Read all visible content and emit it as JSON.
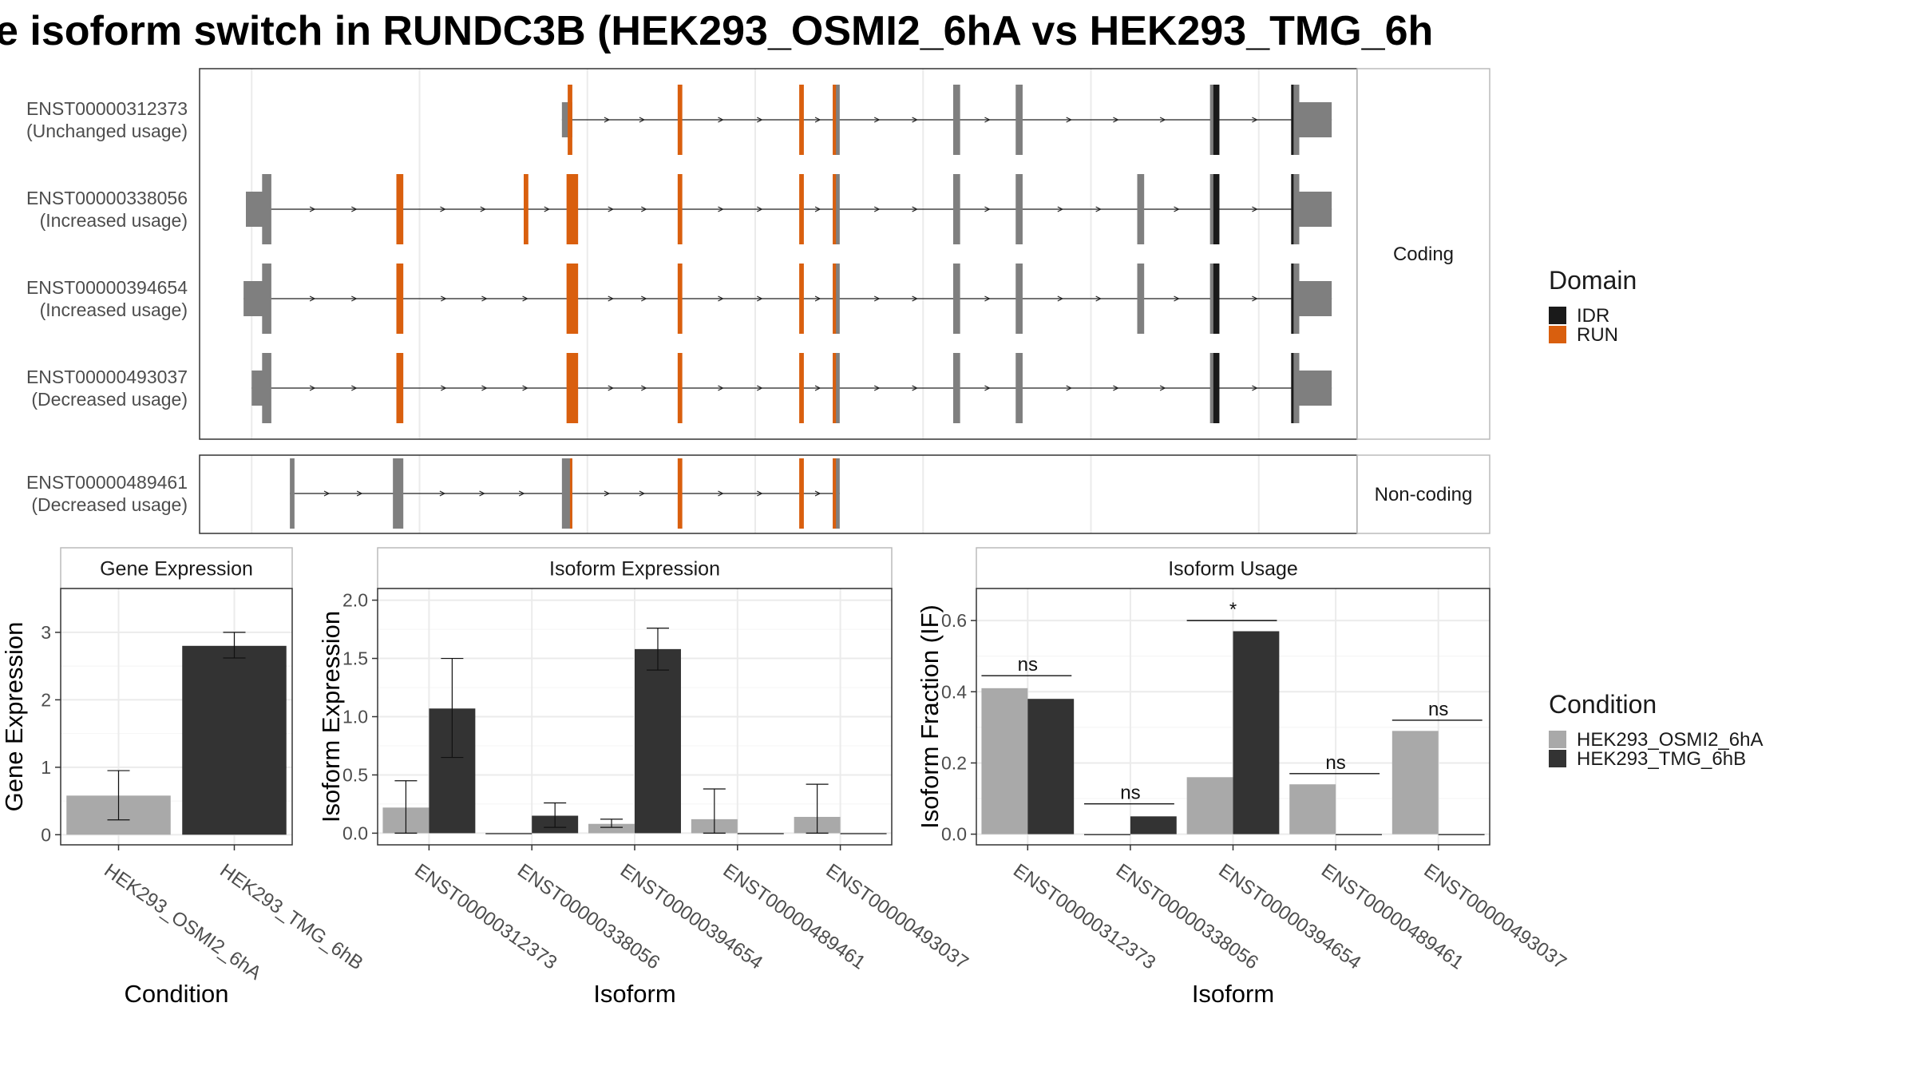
{
  "title": "e isoform switch in RUNDC3B (HEK293_OSMI2_6hA vs HEK293_TMG_6h",
  "colors": {
    "exon": "#7f7f7f",
    "IDR": "#1a1a1a",
    "RUN": "#d95f0e",
    "condA": "#a9a9a9",
    "condB": "#333333",
    "grid": "#ebebeb",
    "strip_bg": "#ffffff"
  },
  "transcripts": {
    "coding_label": "Coding",
    "noncoding_label": "Non-coding",
    "rows": [
      {
        "id": "ENST00000312373",
        "usage": "(Unchanged usage)",
        "group": "Coding",
        "utr_start": [
          0.313,
          0.322
        ],
        "exons": [
          {
            "s": 0.318,
            "e": 0.322,
            "d": "RUN"
          },
          {
            "s": 0.413,
            "e": 0.417,
            "d": "RUN"
          },
          {
            "s": 0.518,
            "e": 0.522,
            "d": "RUN"
          },
          {
            "s": 0.547,
            "e": 0.553,
            "d": "mix"
          },
          {
            "s": 0.651,
            "e": 0.657,
            "d": null
          },
          {
            "s": 0.705,
            "e": 0.711,
            "d": null
          },
          {
            "s": 0.873,
            "e": 0.881,
            "d": "IDR"
          },
          {
            "s": 0.943,
            "e": 0.95,
            "d": "edge"
          }
        ],
        "utr_end": [
          0.95,
          0.978
        ]
      },
      {
        "id": "ENST00000338056",
        "usage": "(Increased usage)",
        "group": "Coding",
        "utr_start": [
          0.04,
          0.06
        ],
        "exons": [
          {
            "s": 0.054,
            "e": 0.062,
            "d": null
          },
          {
            "s": 0.17,
            "e": 0.176,
            "d": "RUN"
          },
          {
            "s": 0.28,
            "e": 0.284,
            "d": "RUN"
          },
          {
            "s": 0.317,
            "e": 0.327,
            "d": "RUN"
          },
          {
            "s": 0.413,
            "e": 0.417,
            "d": "RUN"
          },
          {
            "s": 0.518,
            "e": 0.522,
            "d": "RUN"
          },
          {
            "s": 0.547,
            "e": 0.553,
            "d": "mix"
          },
          {
            "s": 0.651,
            "e": 0.657,
            "d": null
          },
          {
            "s": 0.705,
            "e": 0.711,
            "d": null
          },
          {
            "s": 0.81,
            "e": 0.816,
            "d": null
          },
          {
            "s": 0.873,
            "e": 0.881,
            "d": "IDR"
          },
          {
            "s": 0.943,
            "e": 0.95,
            "d": "edge"
          }
        ],
        "utr_end": [
          0.95,
          0.978
        ]
      },
      {
        "id": "ENST00000394654",
        "usage": "(Increased usage)",
        "group": "Coding",
        "utr_start": [
          0.038,
          0.06
        ],
        "exons": [
          {
            "s": 0.054,
            "e": 0.062,
            "d": null
          },
          {
            "s": 0.17,
            "e": 0.176,
            "d": "RUN"
          },
          {
            "s": 0.317,
            "e": 0.327,
            "d": "RUN"
          },
          {
            "s": 0.413,
            "e": 0.417,
            "d": "RUN"
          },
          {
            "s": 0.518,
            "e": 0.522,
            "d": "RUN"
          },
          {
            "s": 0.547,
            "e": 0.553,
            "d": "mix"
          },
          {
            "s": 0.651,
            "e": 0.657,
            "d": null
          },
          {
            "s": 0.705,
            "e": 0.711,
            "d": null
          },
          {
            "s": 0.81,
            "e": 0.816,
            "d": null
          },
          {
            "s": 0.873,
            "e": 0.881,
            "d": "IDR"
          },
          {
            "s": 0.943,
            "e": 0.95,
            "d": "edge"
          }
        ],
        "utr_end": [
          0.95,
          0.978
        ]
      },
      {
        "id": "ENST00000493037",
        "usage": "(Decreased usage)",
        "group": "Coding",
        "utr_start": [
          0.045,
          0.06
        ],
        "exons": [
          {
            "s": 0.054,
            "e": 0.062,
            "d": null
          },
          {
            "s": 0.17,
            "e": 0.176,
            "d": "RUN"
          },
          {
            "s": 0.317,
            "e": 0.327,
            "d": "RUN"
          },
          {
            "s": 0.413,
            "e": 0.417,
            "d": "RUN"
          },
          {
            "s": 0.518,
            "e": 0.522,
            "d": "RUN"
          },
          {
            "s": 0.547,
            "e": 0.553,
            "d": "mix"
          },
          {
            "s": 0.651,
            "e": 0.657,
            "d": null
          },
          {
            "s": 0.705,
            "e": 0.711,
            "d": null
          },
          {
            "s": 0.873,
            "e": 0.881,
            "d": "IDR"
          },
          {
            "s": 0.943,
            "e": 0.95,
            "d": "edge"
          }
        ],
        "utr_end": [
          0.95,
          0.978
        ]
      },
      {
        "id": "ENST00000489461",
        "usage": "(Decreased usage)",
        "group": "Non-coding",
        "utr_start": null,
        "exons": [
          {
            "s": 0.078,
            "e": 0.082,
            "d": null
          },
          {
            "s": 0.167,
            "e": 0.176,
            "d": null
          },
          {
            "s": 0.313,
            "e": 0.322,
            "d": "RUNedge"
          },
          {
            "s": 0.413,
            "e": 0.417,
            "d": "RUN"
          },
          {
            "s": 0.518,
            "e": 0.522,
            "d": "RUN"
          },
          {
            "s": 0.547,
            "e": 0.553,
            "d": "mix"
          }
        ],
        "utr_end": null
      }
    ]
  },
  "legend_domain": {
    "title": "Domain",
    "items": [
      "IDR",
      "RUN"
    ]
  },
  "legend_condition": {
    "title": "Condition",
    "items": [
      "HEK293_OSMI2_6hA",
      "HEK293_TMG_6hB"
    ]
  },
  "chart_data": [
    {
      "type": "bar",
      "title": "Gene Expression",
      "xlabel": "Condition",
      "ylabel": "Gene Expression",
      "categories": [
        "HEK293_OSMI2_6hA",
        "HEK293_TMG_6hB"
      ],
      "values": [
        0.58,
        2.8
      ],
      "err_low": [
        0.22,
        2.62
      ],
      "err_high": [
        0.95,
        3.0
      ],
      "ylim": [
        -0.15,
        3.65
      ],
      "yticks": [
        0,
        1,
        2,
        3
      ],
      "grid": true
    },
    {
      "type": "bar",
      "title": "Isoform Expression",
      "xlabel": "Isoform",
      "ylabel": "Isoform Expression",
      "categories": [
        "ENST00000312373",
        "ENST00000338056",
        "ENST00000394654",
        "ENST00000489461",
        "ENST00000493037"
      ],
      "series": [
        {
          "name": "HEK293_OSMI2_6hA",
          "values": [
            0.22,
            0.0,
            0.08,
            0.12,
            0.14
          ],
          "err_low": [
            0.0,
            0.0,
            0.05,
            0.0,
            0.0
          ],
          "err_high": [
            0.45,
            0.0,
            0.12,
            0.38,
            0.42
          ]
        },
        {
          "name": "HEK293_TMG_6hB",
          "values": [
            1.07,
            0.15,
            1.58,
            0.0,
            0.0
          ],
          "err_low": [
            0.65,
            0.05,
            1.4,
            0.0,
            0.0
          ],
          "err_high": [
            1.5,
            0.26,
            1.76,
            0.0,
            0.0
          ]
        }
      ],
      "ylim": [
        -0.1,
        2.1
      ],
      "yticks": [
        "0.0",
        "0.5",
        "1.0",
        "1.5",
        "2.0"
      ],
      "grid": true
    },
    {
      "type": "bar",
      "title": "Isoform Usage",
      "xlabel": "Isoform",
      "ylabel": "Isoform Fraction (IF)",
      "categories": [
        "ENST00000312373",
        "ENST00000338056",
        "ENST00000394654",
        "ENST00000489461",
        "ENST00000493037"
      ],
      "series": [
        {
          "name": "HEK293_OSMI2_6hA",
          "values": [
            0.41,
            0.0,
            0.16,
            0.14,
            0.29
          ]
        },
        {
          "name": "HEK293_TMG_6hB",
          "values": [
            0.38,
            0.05,
            0.57,
            0.0,
            0.0
          ]
        }
      ],
      "significance": [
        "ns",
        "ns",
        "*",
        "ns",
        "ns"
      ],
      "sig_y": [
        0.445,
        0.085,
        0.6,
        0.17,
        0.32
      ],
      "ylim": [
        -0.03,
        0.69
      ],
      "yticks": [
        "0.0",
        "0.2",
        "0.4",
        "0.6"
      ],
      "grid": true
    }
  ]
}
